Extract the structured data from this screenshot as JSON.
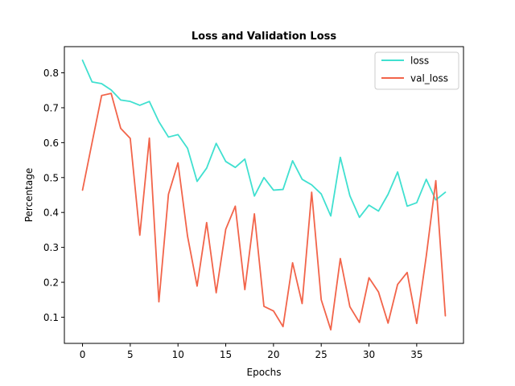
{
  "chart_data": {
    "type": "line",
    "title": "Loss and Validation Loss",
    "xlabel": "Epochs",
    "ylabel": "Percentage",
    "xlim": [
      -1.9,
      39.9
    ],
    "ylim": [
      0.025,
      0.875
    ],
    "xticks": [
      0,
      5,
      10,
      15,
      20,
      25,
      30,
      35
    ],
    "yticks": [
      0.1,
      0.2,
      0.3,
      0.4,
      0.5,
      0.6,
      0.7,
      0.8
    ],
    "xtick_labels": [
      "0",
      "5",
      "10",
      "15",
      "20",
      "25",
      "30",
      "35"
    ],
    "ytick_labels": [
      "0.1",
      "0.2",
      "0.3",
      "0.4",
      "0.5",
      "0.6",
      "0.7",
      "0.8"
    ],
    "grid": false,
    "legend_position": "top-right",
    "x": [
      0,
      1,
      2,
      3,
      4,
      5,
      6,
      7,
      8,
      9,
      10,
      11,
      12,
      13,
      14,
      15,
      16,
      17,
      18,
      19,
      20,
      21,
      22,
      23,
      24,
      25,
      26,
      27,
      28,
      29,
      30,
      31,
      32,
      33,
      34,
      35,
      36,
      37,
      38
    ],
    "series": [
      {
        "name": "loss",
        "color": "#40e0d0",
        "values": [
          0.836,
          0.774,
          0.769,
          0.751,
          0.722,
          0.718,
          0.707,
          0.718,
          0.66,
          0.616,
          0.623,
          0.584,
          0.489,
          0.527,
          0.598,
          0.546,
          0.529,
          0.553,
          0.447,
          0.5,
          0.464,
          0.466,
          0.548,
          0.495,
          0.479,
          0.453,
          0.39,
          0.558,
          0.448,
          0.386,
          0.421,
          0.404,
          0.452,
          0.516,
          0.418,
          0.428,
          0.495,
          0.436,
          0.458
        ]
      },
      {
        "name": "val_loss",
        "color": "#f2644a",
        "values": [
          0.464,
          0.6,
          0.735,
          0.741,
          0.641,
          0.612,
          0.335,
          0.613,
          0.144,
          0.452,
          0.542,
          0.332,
          0.189,
          0.371,
          0.17,
          0.352,
          0.418,
          0.179,
          0.396,
          0.131,
          0.118,
          0.073,
          0.256,
          0.139,
          0.458,
          0.15,
          0.064,
          0.268,
          0.13,
          0.085,
          0.213,
          0.172,
          0.083,
          0.194,
          0.228,
          0.082,
          0.275,
          0.491,
          0.104
        ]
      }
    ]
  }
}
